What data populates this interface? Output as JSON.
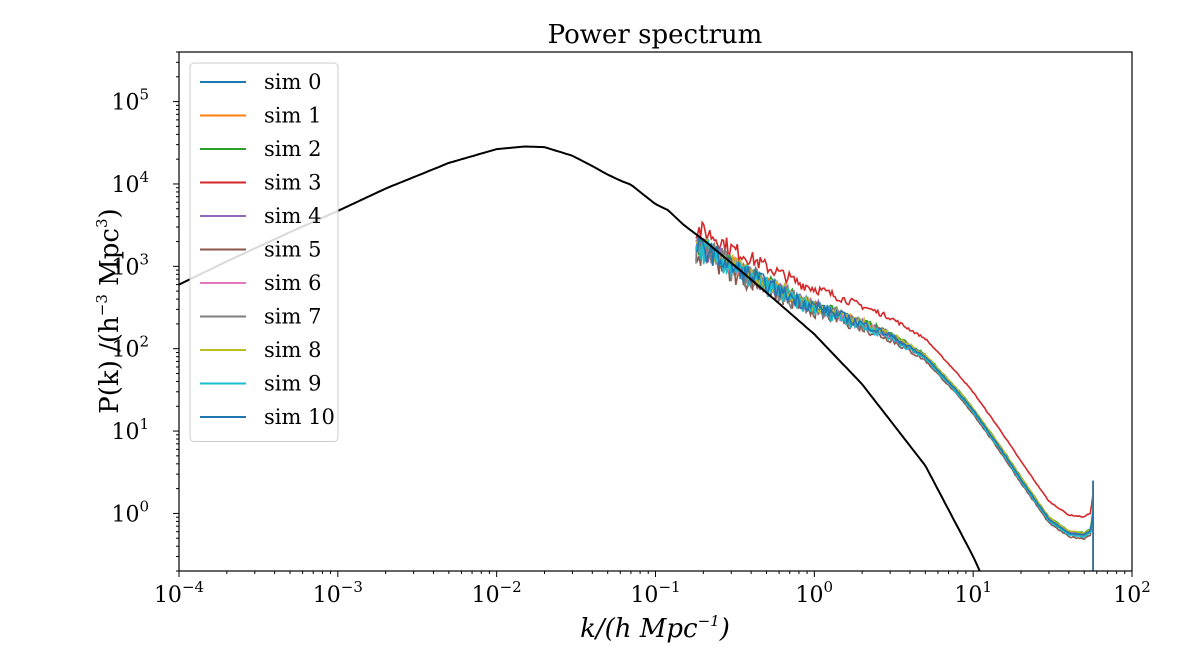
{
  "chart_data": {
    "type": "line",
    "title": "Power spectrum",
    "xlabel": {
      "main": "k/(h Mpc",
      "sup": "−1",
      "tail": ")"
    },
    "ylabel": {
      "head": "P(k) /(h",
      "sup1": "−3",
      "mid": " Mpc",
      "sup2": "3",
      "tail": ")"
    },
    "xscale": "log",
    "yscale": "log",
    "xlim": [
      0.0001,
      100
    ],
    "ylim": [
      0.2,
      400000
    ],
    "xticks": [
      {
        "value": 0.0001,
        "base": "10",
        "exp": "−4"
      },
      {
        "value": 0.001,
        "base": "10",
        "exp": "−3"
      },
      {
        "value": 0.01,
        "base": "10",
        "exp": "−2"
      },
      {
        "value": 0.1,
        "base": "10",
        "exp": "−1"
      },
      {
        "value": 1,
        "base": "10",
        "exp": "0"
      },
      {
        "value": 10,
        "base": "10",
        "exp": "1"
      },
      {
        "value": 100,
        "base": "10",
        "exp": "2"
      }
    ],
    "yticks": [
      {
        "value": 1,
        "base": "10",
        "exp": "0"
      },
      {
        "value": 10,
        "base": "10",
        "exp": "1"
      },
      {
        "value": 100,
        "base": "10",
        "exp": "2"
      },
      {
        "value": 1000,
        "base": "10",
        "exp": "3"
      },
      {
        "value": 10000,
        "base": "10",
        "exp": "4"
      },
      {
        "value": 100000,
        "base": "10",
        "exp": "5"
      }
    ],
    "legend_position": "upper-left",
    "grid": false,
    "linear_spectrum": {
      "color": "#000000",
      "x": [
        0.0001,
        0.0002,
        0.0005,
        0.001,
        0.002,
        0.005,
        0.01,
        0.015,
        0.02,
        0.03,
        0.04,
        0.05,
        0.06,
        0.07,
        0.08,
        0.1,
        0.12,
        0.15,
        0.2,
        0.3,
        0.5,
        1,
        2,
        5,
        10,
        11
      ],
      "y": [
        600,
        1150,
        2600,
        4700,
        8800,
        18000,
        26500,
        28500,
        28000,
        22000,
        16500,
        13000,
        11000,
        9800,
        8000,
        5700,
        4800,
        3200,
        2100,
        1100,
        480,
        150,
        37,
        3.8,
        0.3,
        0.2
      ]
    },
    "series": [
      {
        "name": "sim 0",
        "color": "#1f77b4",
        "amp": 1.0,
        "noise": 0.16
      },
      {
        "name": "sim 1",
        "color": "#ff7f0e",
        "amp": 1.0,
        "noise": 0.15
      },
      {
        "name": "sim 2",
        "color": "#2ca02c",
        "amp": 1.06,
        "noise": 0.14
      },
      {
        "name": "sim 3",
        "color": "#d62728",
        "amp": 1.65,
        "noise": 0.12
      },
      {
        "name": "sim 4",
        "color": "#9467bd",
        "amp": 1.02,
        "noise": 0.15
      },
      {
        "name": "sim 5",
        "color": "#8c564b",
        "amp": 0.9,
        "noise": 0.18
      },
      {
        "name": "sim 6",
        "color": "#e377c2",
        "amp": 0.98,
        "noise": 0.14
      },
      {
        "name": "sim 7",
        "color": "#7f7f7f",
        "amp": 0.97,
        "noise": 0.2
      },
      {
        "name": "sim 8",
        "color": "#bcbd22",
        "amp": 1.05,
        "noise": 0.14
      },
      {
        "name": "sim 9",
        "color": "#17becf",
        "amp": 0.95,
        "noise": 0.17
      },
      {
        "name": "sim 10",
        "color": "#1f77b4",
        "amp": 1.0,
        "noise": 0.15
      }
    ],
    "sim_base": {
      "x": [
        0.18,
        0.22,
        0.3,
        0.5,
        0.8,
        1.2,
        2,
        3,
        5,
        8,
        10,
        15,
        20,
        30,
        40,
        50,
        55,
        57
      ],
      "y": [
        1700,
        1500,
        1000,
        600,
        380,
        290,
        200,
        145,
        80,
        30,
        18,
        6,
        2.6,
        0.85,
        0.58,
        0.55,
        0.62,
        1.1
      ]
    }
  }
}
